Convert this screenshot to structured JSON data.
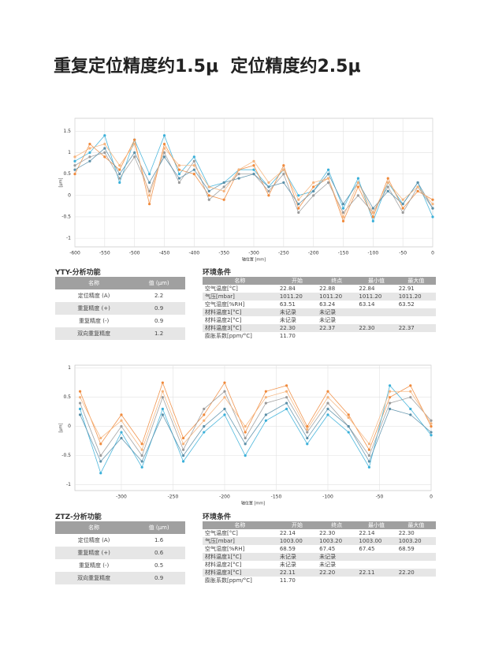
{
  "title": "重复定位精度约1.5μ  定位精度约2.5μ",
  "chart_data": [
    {
      "type": "line",
      "xlabel": "轴位置 [mm]",
      "ylabel": "[μm]",
      "grid": true,
      "x": [
        -600,
        -575,
        -550,
        -525,
        -500,
        -475,
        -450,
        -425,
        -400,
        -375,
        -350,
        -325,
        -300,
        -275,
        -250,
        -225,
        -200,
        -175,
        -150,
        -125,
        -100,
        -75,
        -50,
        -25,
        0
      ],
      "xlim": [
        -600,
        0
      ],
      "xticks": [
        -600,
        -550,
        -500,
        -450,
        -400,
        -350,
        -300,
        -250,
        -200,
        -150,
        -100,
        -50,
        0
      ],
      "ylim": [
        -1.2,
        1.8
      ],
      "yticks": [
        1.5,
        1,
        0.5,
        0,
        -0.5,
        -1
      ],
      "series": [
        {
          "color": "#3bb0d9",
          "values": [
            0.8,
            1.0,
            1.4,
            0.3,
            1.3,
            0.5,
            1.4,
            0.5,
            0.9,
            0.2,
            0.3,
            0.6,
            0.6,
            0.2,
            0.6,
            0.0,
            0.1,
            0.6,
            -0.3,
            0.4,
            -0.6,
            0.3,
            -0.2,
            0.3,
            -0.5
          ]
        },
        {
          "color": "#f08a3c",
          "values": [
            0.5,
            1.2,
            0.9,
            0.6,
            1.3,
            -0.2,
            1.2,
            0.6,
            0.5,
            0.0,
            -0.1,
            0.6,
            0.7,
            0.0,
            0.7,
            -0.3,
            0.2,
            0.4,
            -0.6,
            0.2,
            -0.5,
            0.4,
            -0.3,
            0.1,
            -0.1
          ]
        },
        {
          "color": "#9a9a9a",
          "values": [
            0.7,
            0.9,
            1.0,
            0.4,
            0.9,
            0.1,
            1.0,
            0.3,
            0.8,
            -0.1,
            0.2,
            0.5,
            0.5,
            0.1,
            0.5,
            -0.4,
            0.0,
            0.3,
            -0.4,
            0.0,
            -0.4,
            0.2,
            -0.4,
            0.2,
            -0.3
          ]
        },
        {
          "color": "#5a8fa8",
          "values": [
            0.6,
            0.8,
            1.1,
            0.5,
            1.0,
            0.3,
            0.9,
            0.4,
            0.6,
            0.1,
            0.3,
            0.4,
            0.5,
            0.2,
            0.3,
            -0.2,
            0.1,
            0.5,
            -0.2,
            0.3,
            -0.3,
            0.1,
            -0.2,
            0.3,
            -0.3
          ]
        },
        {
          "color": "#f5b27a",
          "values": [
            0.9,
            1.1,
            1.2,
            0.7,
            1.2,
            0.0,
            1.1,
            0.7,
            0.7,
            0.2,
            0.1,
            0.6,
            0.8,
            0.3,
            0.6,
            -0.1,
            0.3,
            0.4,
            -0.5,
            0.3,
            -0.4,
            0.3,
            -0.1,
            0.2,
            -0.2
          ]
        }
      ]
    },
    {
      "type": "line",
      "xlabel": "轴位置 [mm]",
      "ylabel": "[μm]",
      "grid": true,
      "x": [
        -340,
        -320,
        -300,
        -280,
        -260,
        -240,
        -220,
        -200,
        -180,
        -160,
        -140,
        -120,
        -100,
        -80,
        -60,
        -40,
        -20,
        0
      ],
      "xlim": [
        -345,
        0
      ],
      "xticks": [
        -300,
        -250,
        -200,
        -150,
        -100,
        -50,
        0
      ],
      "ylim": [
        -1.1,
        1.05
      ],
      "yticks": [
        1,
        0.5,
        0,
        -0.5,
        -1
      ],
      "series": [
        {
          "color": "#f08a3c",
          "values": [
            0.6,
            -0.3,
            0.2,
            -0.3,
            0.75,
            -0.2,
            0.2,
            0.75,
            -0.1,
            0.6,
            0.7,
            0.0,
            0.6,
            0.2,
            -0.4,
            0.5,
            0.7,
            0.0
          ]
        },
        {
          "color": "#3bb0d9",
          "values": [
            0.3,
            -0.8,
            -0.1,
            -0.7,
            0.3,
            -0.6,
            -0.1,
            0.2,
            -0.5,
            0.1,
            0.3,
            -0.3,
            0.2,
            -0.1,
            -0.7,
            0.7,
            0.3,
            -0.15
          ]
        },
        {
          "color": "#9a9a9a",
          "values": [
            0.4,
            -0.5,
            0.0,
            -0.5,
            0.5,
            -0.4,
            0.3,
            0.6,
            -0.2,
            0.4,
            0.5,
            -0.1,
            0.4,
            0.0,
            -0.5,
            0.4,
            0.5,
            0.1
          ]
        },
        {
          "color": "#5a8fa8",
          "values": [
            0.2,
            -0.6,
            -0.2,
            -0.6,
            0.2,
            -0.5,
            0.0,
            0.3,
            -0.3,
            0.2,
            0.4,
            -0.2,
            0.3,
            0.0,
            -0.6,
            0.3,
            0.2,
            -0.1
          ]
        },
        {
          "color": "#f5b27a",
          "values": [
            0.5,
            -0.2,
            0.1,
            -0.4,
            0.6,
            -0.3,
            0.1,
            0.5,
            0.0,
            0.5,
            0.6,
            -0.05,
            0.5,
            0.15,
            -0.3,
            0.6,
            0.6,
            0.05
          ]
        }
      ]
    }
  ],
  "sections": [
    {
      "analysis": {
        "title": "YTY-分析功能",
        "header": [
          "名称",
          "值 (μm)"
        ],
        "rows": [
          [
            "定位精度 (A)",
            "2.2"
          ],
          [
            "重复精度 (+)",
            "0.9"
          ],
          [
            "重复精度 (-)",
            "0.9"
          ],
          [
            "双向重复精度",
            "1.2"
          ]
        ]
      },
      "env": {
        "title": "环境条件",
        "header": [
          "名称",
          "开始",
          "终点",
          "最小值",
          "最大值"
        ],
        "rows": [
          [
            "空气温度[°C]",
            "22.84",
            "22.88",
            "22.84",
            "22.91"
          ],
          [
            "气压[mbar]",
            "1011.20",
            "1011.20",
            "1011.20",
            "1011.20"
          ],
          [
            "空气湿度[%RH]",
            "63.51",
            "63.24",
            "63.14",
            "63.52"
          ],
          [
            "材料温度1[°C]",
            "未记录",
            "未记录"
          ],
          [
            "材料温度2[°C]",
            "未记录",
            "未记录"
          ],
          [
            "材料温度3[°C]",
            "22.30",
            "22.37",
            "22.30",
            "22.37"
          ],
          [
            "膨胀系数[ppm/°C]",
            "11.70"
          ]
        ]
      }
    },
    {
      "analysis": {
        "title": "ZTZ-分析功能",
        "header": [
          "名称",
          "值 (μm)"
        ],
        "rows": [
          [
            "定位精度 (A)",
            "1.6"
          ],
          [
            "重复精度 (+)",
            "0.6"
          ],
          [
            "重复精度 (-)",
            "0.5"
          ],
          [
            "双向重复精度",
            "0.9"
          ]
        ]
      },
      "env": {
        "title": "环境条件",
        "header": [
          "名称",
          "开始",
          "终点",
          "最小值",
          "最大值"
        ],
        "rows": [
          [
            "空气温度[°C]",
            "22.14",
            "22.30",
            "22.14",
            "22.30"
          ],
          [
            "气压[mbar]",
            "1003.00",
            "1003.20",
            "1003.00",
            "1003.20"
          ],
          [
            "空气湿度[%RH]",
            "68.59",
            "67.45",
            "67.45",
            "68.59"
          ],
          [
            "材料温度1[°C]",
            "未记录",
            "未记录"
          ],
          [
            "材料温度2[°C]",
            "未记录",
            "未记录"
          ],
          [
            "材料温度3[°C]",
            "22.11",
            "22.20",
            "22.11",
            "22.20"
          ],
          [
            "膨胀系数[ppm/°C]",
            "11.70"
          ]
        ]
      }
    }
  ]
}
